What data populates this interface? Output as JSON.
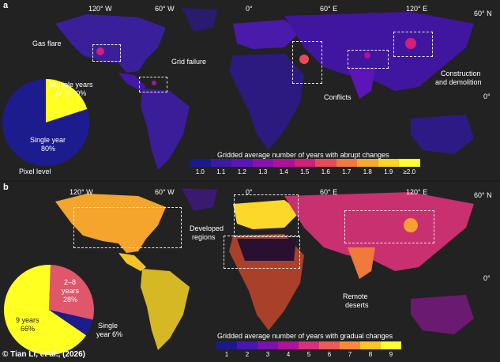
{
  "panel_a": {
    "letter": "a",
    "coords": {
      "lon": [
        "120° W",
        "60° W",
        "0°",
        "60° E",
        "120° E"
      ],
      "lat_top": "60° N",
      "lat_eq": "0°"
    },
    "callouts": {
      "gas_flare": "Gas flare",
      "grid_failure": "Grid failure",
      "conflicts": "Conflicts",
      "construction_1": "Construction",
      "construction_2": "and demolition"
    },
    "legend": {
      "title": "Gridded average number of years with abrupt changes",
      "ticks": [
        "1.0",
        "1.1",
        "1.2",
        "1.3",
        "1.4",
        "1.5",
        "1.6",
        "1.7",
        "1.8",
        "1.9",
        "≥2.0"
      ],
      "colors": [
        "#1a1a8c",
        "#3d1aa6",
        "#5c15b8",
        "#8a10b0",
        "#b0109a",
        "#d11f7a",
        "#e84a5a",
        "#f27a3c",
        "#f8a82a",
        "#fbd51f",
        "#ffff30"
      ]
    },
    "pie": {
      "label_multi_1": "Multiple years",
      "label_multi_2": "(> 1) 20%",
      "label_single_1": "Single year",
      "label_single_2": "80%",
      "caption": "Pixel level",
      "slices": [
        {
          "name": "Single year",
          "value": 80,
          "color": "#1c1c8e"
        },
        {
          "name": "Multiple years",
          "value": 20,
          "color": "#ffff22"
        }
      ]
    }
  },
  "panel_b": {
    "letter": "b",
    "coords": {
      "lon": [
        "120° W",
        "60° W",
        "0°",
        "60° E",
        "120° E"
      ],
      "lat_top": "60° N",
      "lat_eq": "0°"
    },
    "callouts": {
      "developed_1": "Developed",
      "developed_2": "regions",
      "remote_1": "Remote",
      "remote_2": "deserts"
    },
    "legend": {
      "title": "Gridded average number of years with gradual changes",
      "ticks": [
        "1",
        "2",
        "3",
        "4",
        "5",
        "6",
        "7",
        "8",
        "9"
      ],
      "colors": [
        "#1a1a8c",
        "#4a16b0",
        "#7a12b0",
        "#b0129a",
        "#d8307a",
        "#ee5a55",
        "#f78a38",
        "#fbc524",
        "#ffff30"
      ]
    },
    "pie": {
      "label_mid_1": "2–8",
      "label_mid_2": "years",
      "label_mid_3": "28%",
      "label_nine_1": "9 years",
      "label_nine_2": "66%",
      "label_single_1": "Single",
      "label_single_2": "year 6%",
      "slices": [
        {
          "name": "9 years",
          "value": 66,
          "color": "#ffff22"
        },
        {
          "name": "Single year",
          "value": 6,
          "color": "#1c1c8e"
        },
        {
          "name": "2–8 years",
          "value": 28,
          "color": "#e0566a"
        }
      ]
    }
  },
  "credit": "© Tian Li, et al., (2026)"
}
